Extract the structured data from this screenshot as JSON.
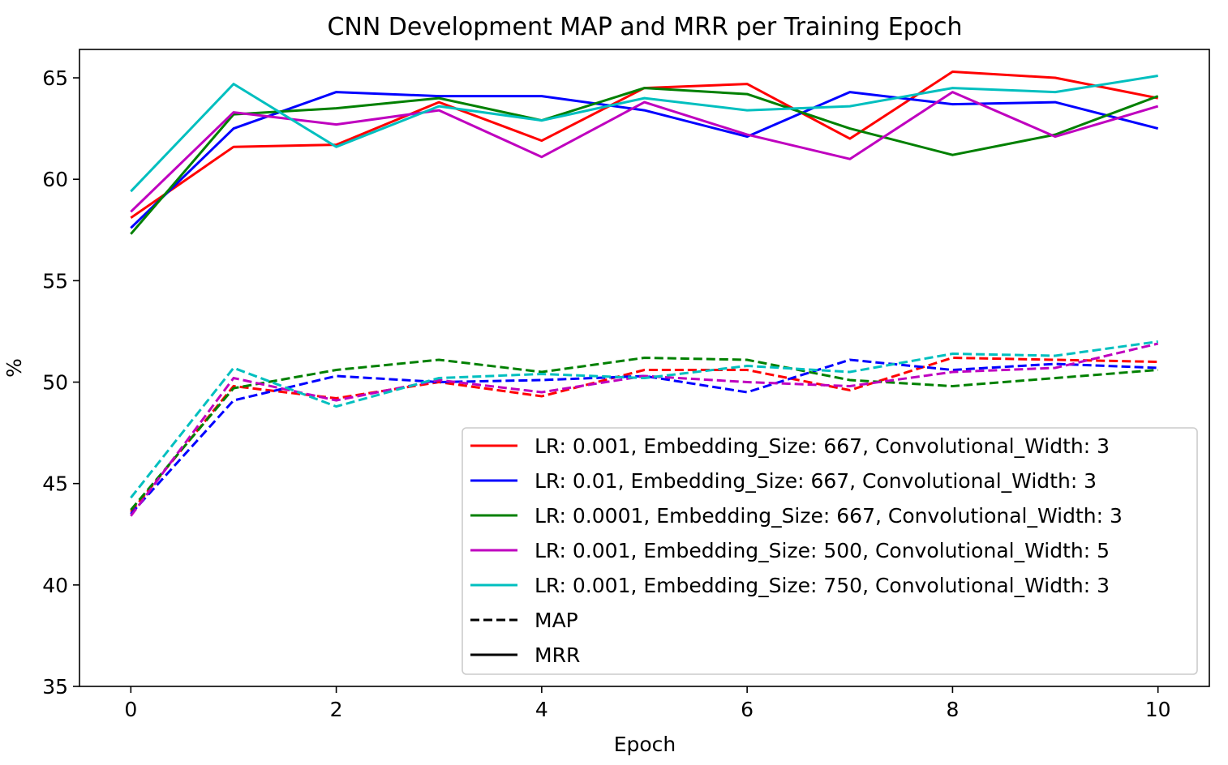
{
  "chart_data": {
    "type": "line",
    "title": "CNN Development MAP and MRR per Training Epoch",
    "xlabel": "Epoch",
    "ylabel": "%",
    "xlim": [
      -0.5,
      10.5
    ],
    "ylim": [
      35,
      66.4
    ],
    "xticks": [
      "0",
      "2",
      "4",
      "6",
      "8",
      "10"
    ],
    "yticks": [
      "35",
      "40",
      "45",
      "50",
      "55",
      "60",
      "65"
    ],
    "grid": false,
    "legend_position": "lower-right",
    "x": [
      0,
      1,
      2,
      3,
      4,
      5,
      6,
      7,
      8,
      9,
      10
    ],
    "series": [
      {
        "name": "LR: 0.001, Embedding_Size: 667, Convolutional_Width: 3",
        "color": "#ff0000",
        "mrr": [
          58.1,
          61.6,
          61.7,
          63.8,
          61.9,
          64.5,
          64.7,
          62.0,
          65.3,
          65.0,
          64.0
        ],
        "map": [
          43.6,
          49.8,
          49.2,
          50.0,
          49.3,
          50.6,
          50.6,
          49.6,
          51.2,
          51.1,
          51.0
        ]
      },
      {
        "name": "LR: 0.01, Embedding_Size: 667, Convolutional_Width: 3",
        "color": "#0000ff",
        "mrr": [
          57.6,
          62.5,
          64.3,
          64.1,
          64.1,
          63.4,
          62.1,
          64.3,
          63.7,
          63.8,
          62.5
        ],
        "map": [
          43.5,
          49.1,
          50.3,
          50.0,
          50.1,
          50.3,
          49.5,
          51.1,
          50.6,
          50.9,
          50.7
        ]
      },
      {
        "name": "LR: 0.0001, Embedding_Size: 667, Convolutional_Width: 3",
        "color": "#008000",
        "mrr": [
          57.3,
          63.2,
          63.5,
          64.0,
          62.9,
          64.5,
          64.2,
          62.5,
          61.2,
          62.2,
          64.1
        ],
        "map": [
          43.7,
          49.7,
          50.6,
          51.1,
          50.5,
          51.2,
          51.1,
          50.1,
          49.8,
          50.2,
          50.6
        ]
      },
      {
        "name": "LR: 0.001, Embedding_Size: 500, Convolutional_Width: 5",
        "color": "#bf00bf",
        "mrr": [
          58.4,
          63.3,
          62.7,
          63.4,
          61.1,
          63.8,
          62.2,
          61.0,
          64.3,
          62.1,
          63.6
        ],
        "map": [
          43.4,
          50.2,
          49.1,
          50.1,
          49.5,
          50.3,
          50.0,
          49.8,
          50.5,
          50.7,
          51.9
        ]
      },
      {
        "name": "LR: 0.001, Embedding_Size: 750, Convolutional_Width: 3",
        "color": "#00bfbf",
        "mrr": [
          59.4,
          64.7,
          61.6,
          63.6,
          62.9,
          64.0,
          63.4,
          63.6,
          64.5,
          64.3,
          65.1
        ],
        "map": [
          44.3,
          50.7,
          48.8,
          50.2,
          50.4,
          50.2,
          50.8,
          50.5,
          51.4,
          51.3,
          52.0
        ]
      }
    ],
    "style_legend": [
      {
        "name": "MAP",
        "style": "dashed"
      },
      {
        "name": "MRR",
        "style": "solid"
      }
    ]
  }
}
